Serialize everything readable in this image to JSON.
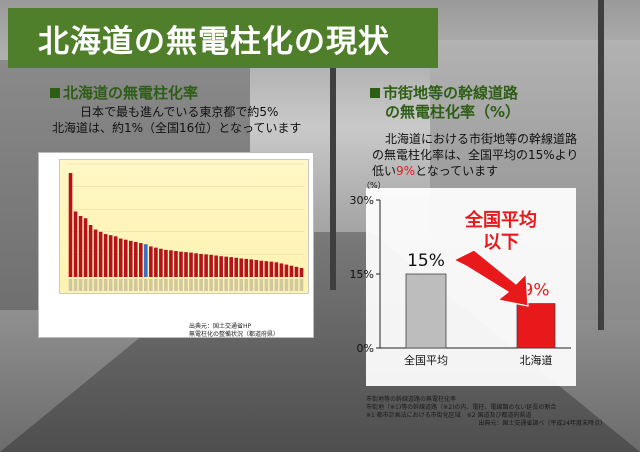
{
  "title": "北海道の無電柱化の現状",
  "left": {
    "heading": "北海道の無電柱化率",
    "lines": [
      "日本で最も進んでいる東京都で約5%",
      "北海道は、約1%（全国16位）となっています"
    ],
    "source": [
      "出典元：国土交通省HP",
      "無電柱化の整備状況（都道府県）"
    ]
  },
  "right": {
    "heading_line1": "市街地等の幹線道路",
    "heading_line2": "の無電柱化率（%）",
    "body_line1": "北海道における市街地等の幹線道路",
    "body_line2": "の無電柱化率は、全国平均の15%より",
    "body_line3_pre": "低い",
    "body_line3_red": "9%",
    "body_line3_post": "となっています",
    "callout_line1": "全国平均",
    "callout_line2": "以下",
    "footnote": [
      "市街地等の幹線道路の無電柱化率",
      "市街地（※1)等の幹線道路（※2)の内、電柱、電線類のない延長の割合",
      "※1 都市計画法における市街化区域　※2 国道及び都道府県道",
      "出典元：国土交通省調べ（平成24年度末時点）"
    ]
  },
  "colors": {
    "title_bg": "#4f7f2b",
    "bar_red": "#b5121b",
    "bar_blue": "#3a6fc0",
    "accent_red": "#e8191a",
    "avg_gray": "#bdbdbd"
  },
  "chart_data": [
    {
      "type": "bar",
      "values": [
        4.6,
        2.9,
        2.7,
        2.6,
        2.3,
        2.1,
        2.0,
        1.9,
        1.85,
        1.8,
        1.7,
        1.65,
        1.6,
        1.55,
        1.5,
        1.45,
        1.35,
        1.3,
        1.25,
        1.2,
        1.18,
        1.15,
        1.12,
        1.1,
        1.08,
        1.05,
        1.02,
        1.0,
        0.98,
        0.95,
        0.92,
        0.9,
        0.88,
        0.85,
        0.82,
        0.8,
        0.78,
        0.75,
        0.72,
        0.7,
        0.68,
        0.65,
        0.6,
        0.55,
        0.5,
        0.45,
        0.4
      ],
      "highlight_index": 15,
      "ylim": [
        0,
        5
      ]
    },
    {
      "type": "bar",
      "categories": [
        "全国平均",
        "北海道"
      ],
      "values": [
        15,
        9
      ],
      "value_labels": [
        "15%",
        "9%"
      ],
      "yticks": [
        "0%",
        "15%",
        "30%"
      ],
      "ylim": [
        0,
        30
      ],
      "unit": "（%）"
    }
  ]
}
